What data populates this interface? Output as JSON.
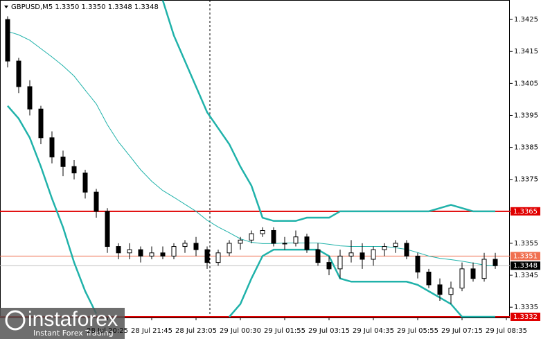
{
  "chart_data": {
    "type": "candlestick",
    "title": "GBPUSD,M5  1.3350 1.3350 1.3348 1.3348",
    "categories": [
      null,
      null,
      null,
      null,
      null,
      null,
      null,
      null,
      null,
      "28 Jul 20:25",
      null,
      null,
      null,
      "28 Jul 21:45",
      null,
      null,
      null,
      "28 Jul 23:05",
      null,
      null,
      null,
      "29 Jul 00:30",
      null,
      null,
      null,
      "29 Jul 01:55",
      null,
      null,
      null,
      "29 Jul 03:15",
      null,
      null,
      null,
      "29 Jul 04:35",
      null,
      null,
      null,
      "29 Jul 05:55",
      null,
      null,
      null,
      "29 Jul 07:15",
      null,
      null,
      null,
      "29 Jul 08:35"
    ],
    "open": [
      1.3425,
      1.3412,
      1.3404,
      1.3397,
      1.3388,
      1.3382,
      1.3379,
      1.3377,
      1.3371,
      1.3365,
      1.3354,
      1.3352,
      1.3353,
      1.3351,
      1.3352,
      1.3351,
      1.3354,
      1.3355,
      1.3353,
      1.3349,
      1.3352,
      1.3355,
      1.3356,
      1.3358,
      1.3359,
      1.3355,
      1.3355,
      1.3357,
      1.3353,
      1.3349,
      1.3347,
      1.3351,
      1.3352,
      1.335,
      1.3353,
      1.3354,
      1.3355,
      1.3351,
      1.3346,
      1.3342,
      1.3339,
      1.3341,
      1.3347,
      1.3344,
      1.335,
      null
    ],
    "high": [
      1.3426,
      1.3413,
      1.3406,
      1.3398,
      1.339,
      1.3384,
      1.3381,
      1.3378,
      1.3372,
      1.3366,
      1.3355,
      1.3355,
      1.3354,
      1.3354,
      1.3354,
      1.3355,
      1.3356,
      1.3357,
      1.3354,
      1.3353,
      1.3356,
      1.3357,
      1.3359,
      1.336,
      1.336,
      1.3357,
      1.3359,
      1.3358,
      1.3355,
      1.3351,
      1.3353,
      1.3356,
      1.3355,
      1.3354,
      1.3355,
      1.3356,
      1.3356,
      1.3352,
      1.3347,
      1.3344,
      1.3343,
      1.3349,
      1.3349,
      1.3352,
      1.3352,
      null
    ],
    "low": [
      1.341,
      1.3402,
      1.3395,
      1.3386,
      1.338,
      1.3376,
      1.3375,
      1.3369,
      1.3363,
      1.3352,
      1.335,
      1.335,
      1.3349,
      1.335,
      1.335,
      1.335,
      1.3352,
      1.3351,
      1.3347,
      1.3348,
      1.3351,
      1.3353,
      1.3355,
      1.3357,
      1.3354,
      1.3353,
      1.3354,
      1.3352,
      1.3348,
      1.3345,
      1.3344,
      1.3349,
      1.3347,
      1.3348,
      1.3351,
      1.3352,
      1.335,
      1.3344,
      1.3341,
      1.3337,
      1.3336,
      1.334,
      1.3343,
      1.3343,
      1.3347,
      null
    ],
    "close": [
      1.3412,
      1.3404,
      1.3397,
      1.3388,
      1.3382,
      1.3379,
      1.3377,
      1.3371,
      1.3365,
      1.3354,
      1.3352,
      1.3353,
      1.3351,
      1.3352,
      1.3351,
      1.3354,
      1.3355,
      1.3353,
      1.3349,
      1.3352,
      1.3355,
      1.3356,
      1.3358,
      1.3359,
      1.3355,
      1.3355,
      1.3357,
      1.3353,
      1.3349,
      1.3347,
      1.3351,
      1.3352,
      1.335,
      1.3353,
      1.3354,
      1.3355,
      1.3351,
      1.3346,
      1.3342,
      1.3339,
      1.3341,
      1.3347,
      1.3344,
      1.335,
      1.3348,
      null
    ],
    "candle_colors": {
      "up": "#ffffff",
      "down": "#000000",
      "outline": "#000000"
    },
    "series": [
      {
        "color": "#20b2aa",
        "width": 2.5,
        "values": [
          null,
          null,
          null,
          null,
          null,
          null,
          null,
          null,
          null,
          null,
          null,
          null,
          null,
          null,
          1.3431,
          1.342,
          1.3412,
          1.3404,
          1.3396,
          1.3391,
          1.3386,
          1.3379,
          1.3373,
          1.3363,
          1.3362,
          1.3362,
          1.3362,
          1.3363,
          1.3363,
          1.3363,
          1.3365,
          1.3365,
          1.3365,
          1.3365,
          1.3365,
          1.3365,
          1.3365,
          1.3365,
          1.3365,
          1.3366,
          1.3367,
          1.3366,
          1.3365,
          1.3365,
          1.3365,
          null
        ]
      },
      {
        "color": "#20b2aa",
        "width": 1,
        "values": [
          1.34213,
          1.34202,
          1.34185,
          1.34159,
          1.34133,
          1.34105,
          1.34073,
          1.34029,
          1.33986,
          1.33921,
          1.33867,
          1.33824,
          1.3378,
          1.33744,
          1.33715,
          1.33694,
          1.33672,
          1.3365,
          1.33622,
          1.33601,
          1.33583,
          1.33564,
          1.33553,
          1.33549,
          1.33549,
          1.33551,
          1.33551,
          1.33551,
          1.33551,
          1.33547,
          1.33542,
          1.3354,
          1.3354,
          1.3354,
          1.3354,
          1.33536,
          1.33531,
          1.33521,
          1.3351,
          1.33503,
          1.33499,
          1.33494,
          1.33488,
          1.33482,
          1.33479,
          null
        ]
      },
      {
        "color": "#20b2aa",
        "width": 2.5,
        "values": [
          1.3398,
          1.3394,
          1.3388,
          1.3379,
          1.3369,
          1.336,
          1.3349,
          1.334,
          1.3333,
          null,
          null,
          null,
          null,
          null,
          null,
          null,
          null,
          null,
          null,
          null,
          1.3332,
          1.3336,
          1.3344,
          1.3351,
          1.3353,
          1.3353,
          1.3353,
          1.3353,
          1.3353,
          1.3351,
          1.3344,
          1.3343,
          1.3343,
          1.3343,
          1.3343,
          1.3343,
          1.3343,
          1.3342,
          1.334,
          1.3338,
          1.3336,
          1.3332,
          1.3332,
          1.3332,
          1.3332,
          null
        ]
      }
    ],
    "hlines": [
      {
        "value": 1.3365,
        "color": "#e00000",
        "width": 2,
        "box": "#e00000"
      },
      {
        "value": 1.3351,
        "color": "#f07050",
        "width": 1,
        "box": "#f07050"
      },
      {
        "value": 1.3348,
        "color": "#c0c0c0",
        "width": 1,
        "box": "#000000"
      },
      {
        "value": 1.3332,
        "color": "#e00000",
        "width": 2,
        "box": "#e00000"
      }
    ],
    "ylim": [
      1.3332,
      1.34311
    ],
    "yticks": [
      1.3335,
      1.3345,
      1.3355,
      1.3365,
      1.3375,
      1.3385,
      1.3395,
      1.3405,
      1.3415,
      1.3425
    ],
    "branding": {
      "name": "instaforex",
      "tagline": "Instant Forex Trading"
    }
  }
}
